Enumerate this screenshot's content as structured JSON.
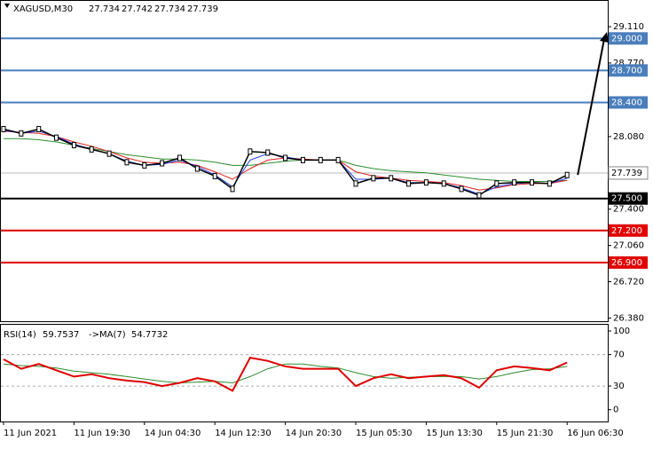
{
  "chart_data": {
    "type": "line",
    "title": "XAGUSD,M30",
    "ohlc": [
      27.734,
      27.742,
      27.734,
      27.739
    ],
    "categories": [
      "11 Jun 2021",
      null,
      null,
      null,
      "11 Jun 19:30",
      null,
      null,
      null,
      "14 Jun 04:30",
      null,
      null,
      null,
      "14 Jun 12:30",
      null,
      null,
      null,
      "14 Jun 20:30",
      null,
      null,
      null,
      "15 Jun 05:30",
      null,
      null,
      null,
      "15 Jun 13:30",
      null,
      null,
      null,
      "15 Jun 21:30",
      null,
      null,
      null,
      "16 Jun 06:30"
    ],
    "series": [
      {
        "color": "#000000",
        "values": [
          28.15,
          28.11,
          28.15,
          28.07,
          28.0,
          27.96,
          27.92,
          27.84,
          27.81,
          27.83,
          27.88,
          27.78,
          27.71,
          27.59,
          27.94,
          27.93,
          27.88,
          27.86,
          27.86,
          27.86,
          27.64,
          27.69,
          27.69,
          27.64,
          27.65,
          27.64,
          27.59,
          27.53,
          27.64,
          27.65,
          27.65,
          27.64,
          27.72
        ]
      },
      {
        "color": "#2e8b2e",
        "values": [
          28.06,
          28.06,
          28.05,
          28.03,
          28.0,
          27.97,
          27.94,
          27.91,
          27.89,
          27.87,
          27.87,
          27.86,
          27.84,
          27.81,
          27.81,
          27.83,
          27.85,
          27.86,
          27.86,
          27.86,
          27.81,
          27.78,
          27.76,
          27.75,
          27.74,
          27.72,
          27.7,
          27.68,
          27.67,
          27.66,
          27.66,
          27.66,
          27.67
        ]
      },
      {
        "color": "#e02020",
        "values": [
          28.13,
          28.12,
          28.11,
          28.08,
          28.03,
          27.99,
          27.94,
          27.88,
          27.84,
          27.83,
          27.84,
          27.81,
          27.75,
          27.68,
          27.78,
          27.86,
          27.88,
          27.87,
          27.86,
          27.86,
          27.75,
          27.71,
          27.69,
          27.67,
          27.66,
          27.65,
          27.62,
          27.58,
          27.6,
          27.63,
          27.64,
          27.64,
          27.67
        ]
      },
      {
        "color": "#2040e0",
        "values": [
          28.14,
          28.11,
          28.13,
          28.08,
          28.01,
          27.96,
          27.92,
          27.85,
          27.81,
          27.82,
          27.86,
          27.8,
          27.72,
          27.61,
          27.86,
          27.92,
          27.89,
          27.86,
          27.86,
          27.86,
          27.68,
          27.68,
          27.69,
          27.65,
          27.65,
          27.64,
          27.6,
          27.54,
          27.61,
          27.64,
          27.65,
          27.64,
          27.69
        ]
      }
    ],
    "ylim": [
      26.35,
      29.36
    ],
    "yticks": [
      {
        "value": 29.11,
        "label": "29.110"
      },
      {
        "value": 28.77,
        "label": "28.770"
      },
      {
        "value": 28.08,
        "label": "28.080"
      },
      {
        "value": 27.4,
        "label": "27.400"
      },
      {
        "value": 27.06,
        "label": "27.060"
      },
      {
        "value": 26.72,
        "label": "26.720"
      },
      {
        "value": 26.38,
        "label": "26.380"
      }
    ],
    "levels": [
      {
        "value": 29,
        "label": "29.000",
        "color": "#4a7ebb"
      },
      {
        "value": 28.7,
        "label": "28.700",
        "color": "#4a7ebb"
      },
      {
        "value": 28.4,
        "label": "28.400",
        "color": "#4a7ebb"
      },
      {
        "value": 27.5,
        "label": "27.500",
        "color": "#000000"
      },
      {
        "value": 27.2,
        "label": "27.200",
        "color": "#e00000"
      },
      {
        "value": 26.9,
        "label": "26.900",
        "color": "#e00000"
      }
    ],
    "current_price": 27.739,
    "rsi": {
      "label": "RSI(14)",
      "value": 59.7537,
      "ma_label": "->MA(7)",
      "ma_value": 54.7732,
      "ylim": [
        -15,
        109
      ],
      "yticks": [
        100,
        70,
        30,
        0
      ],
      "levels": [
        70,
        30
      ],
      "values": [
        64,
        52,
        58,
        50,
        42,
        45,
        40,
        37,
        35,
        30,
        34,
        40,
        36,
        24,
        66,
        62,
        55,
        52,
        52,
        52,
        30,
        40,
        45,
        40,
        42,
        44,
        40,
        28,
        50,
        55,
        53,
        50,
        60
      ],
      "ma_values": [
        58,
        56,
        55,
        53,
        49,
        47,
        45,
        42,
        39,
        36,
        34,
        35,
        36,
        34,
        42,
        52,
        58,
        58,
        55,
        53,
        47,
        42,
        40,
        41,
        42,
        42,
        42,
        39,
        42,
        47,
        51,
        52,
        55
      ],
      "color": "#e00000",
      "ma_color": "#2e8b2e"
    }
  }
}
